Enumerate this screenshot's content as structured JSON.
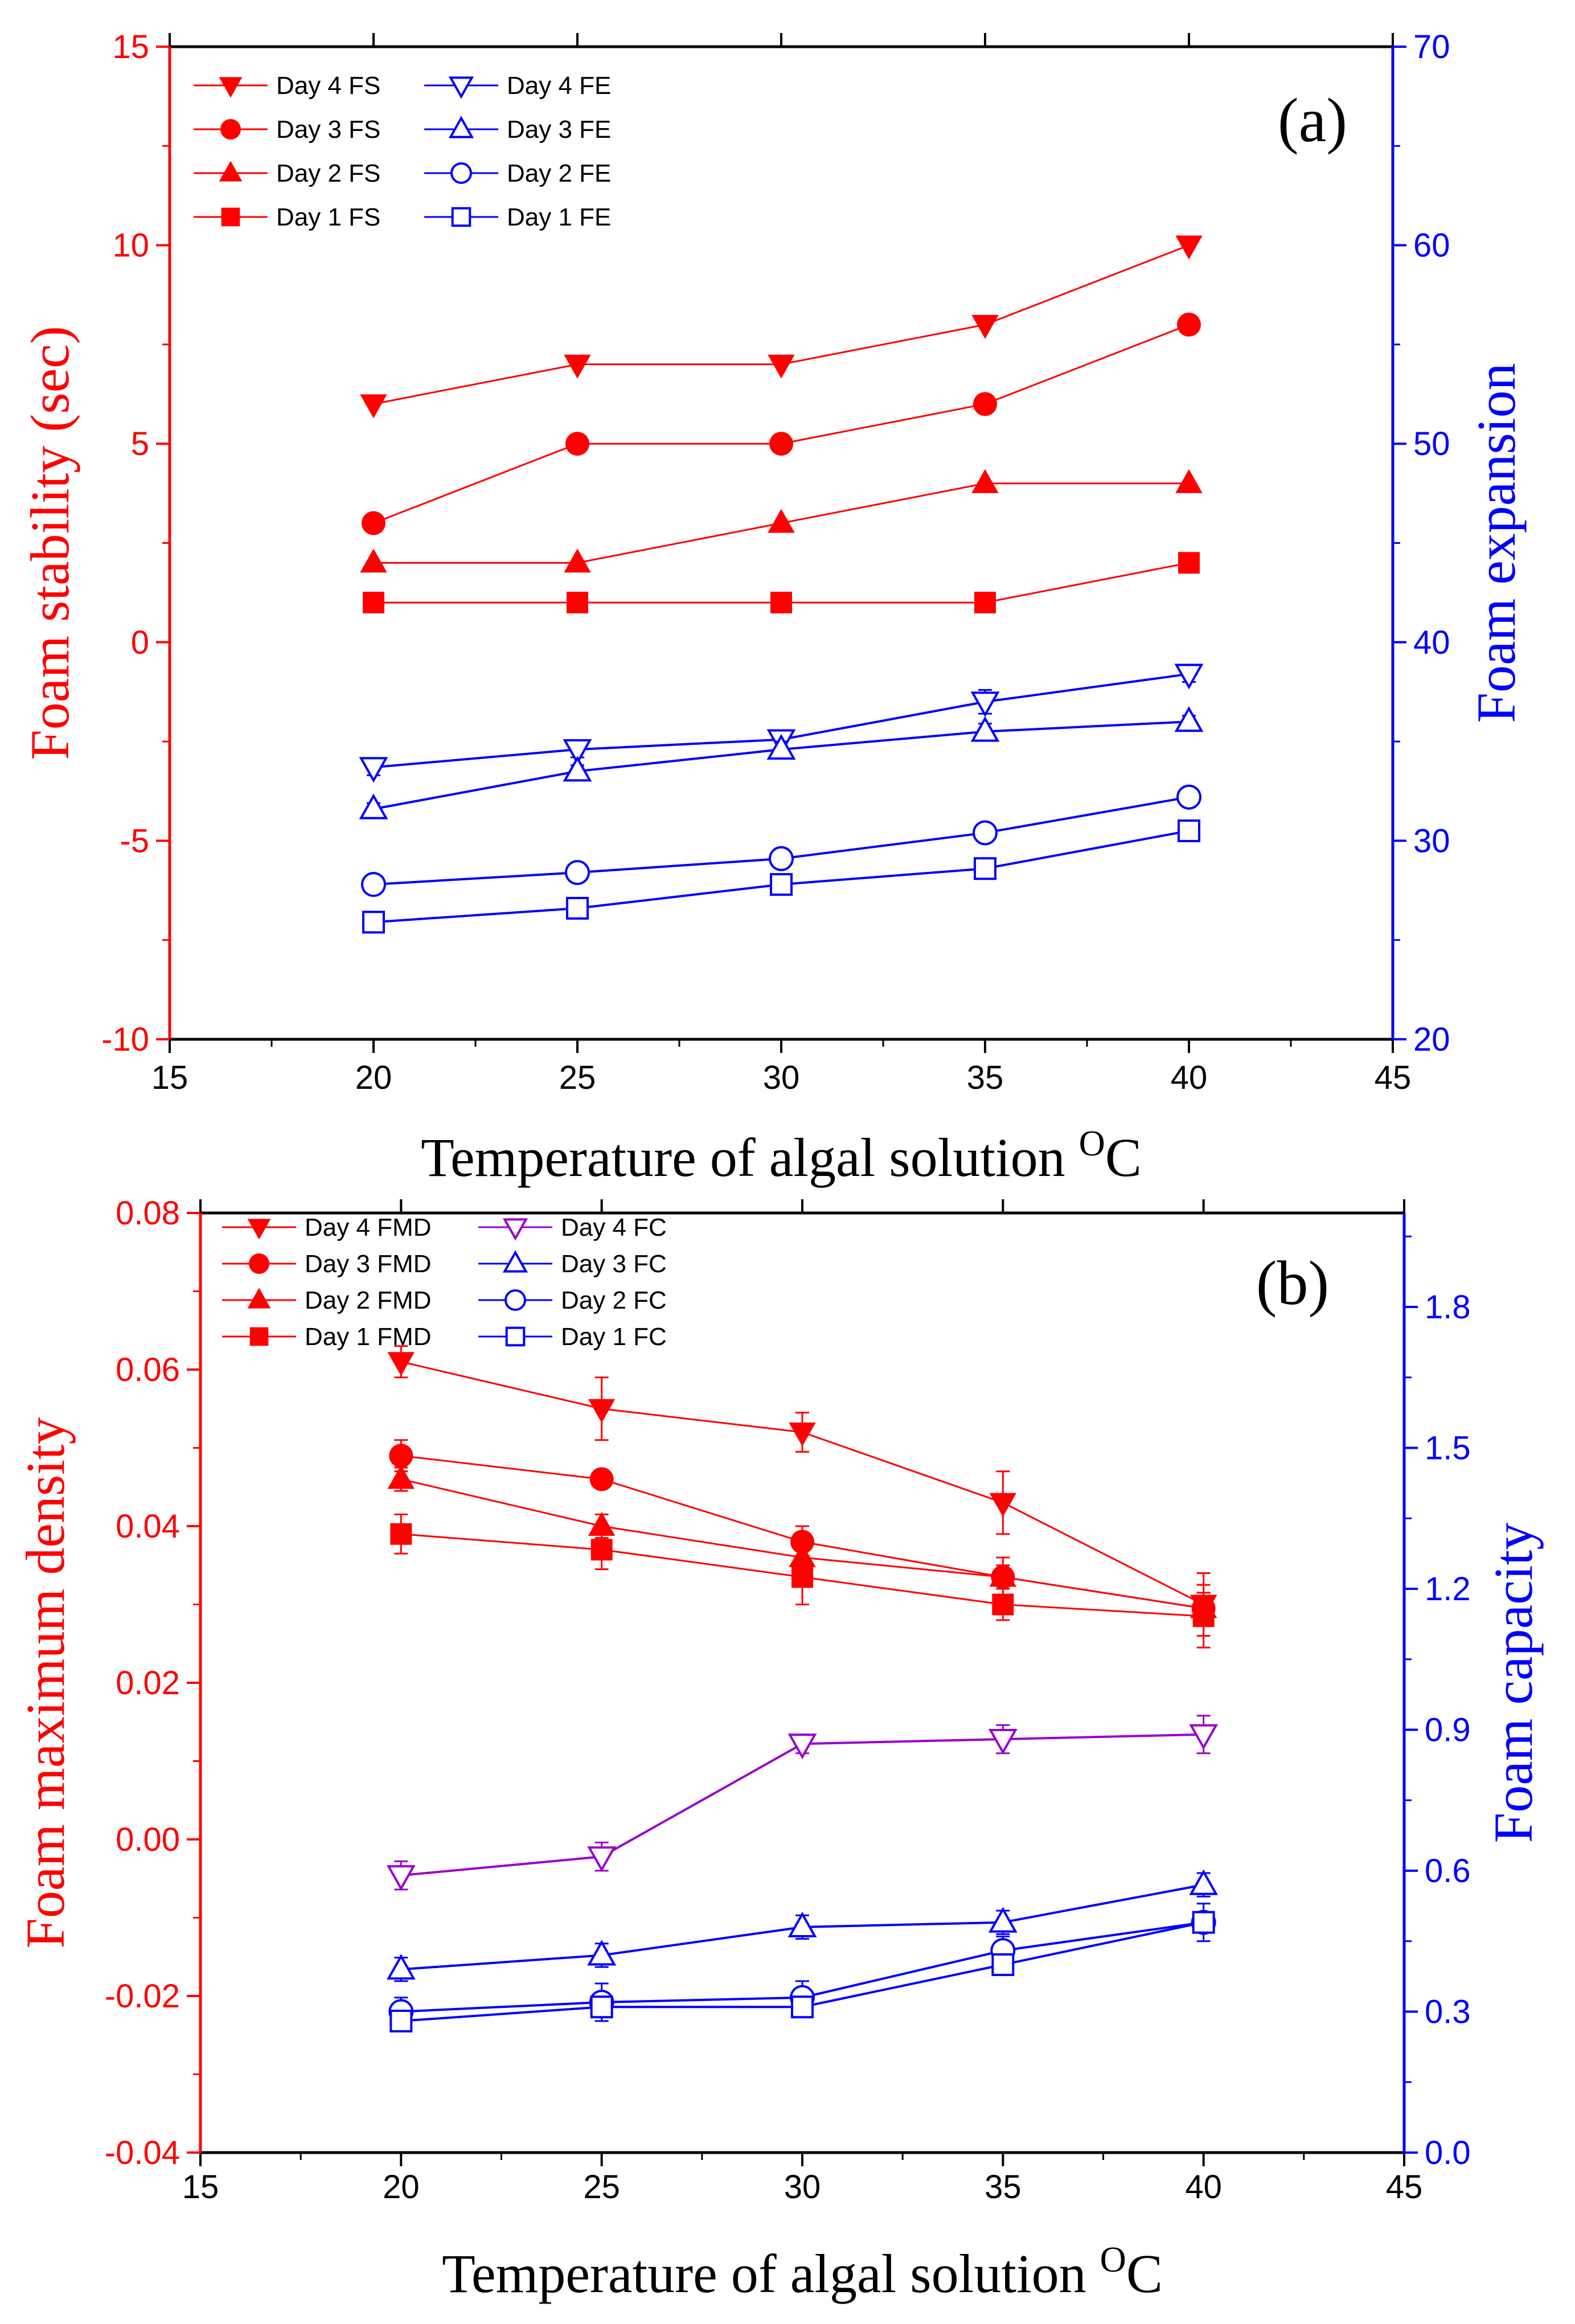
{
  "colors": {
    "red": "#ff0000",
    "blue": "#0000ff",
    "purple": "#9900cc",
    "black": "#000000"
  },
  "chart_data": [
    {
      "panel_label": "(a)",
      "type": "line",
      "xlabel": "Temperature of algal solution",
      "xlabel_unit_sup": "O",
      "xlabel_unit": "C",
      "xlim": [
        15,
        45
      ],
      "xticks": [
        "15",
        "20",
        "25",
        "30",
        "35",
        "40",
        "45"
      ],
      "ylabel_left": "Foam stability (sec)",
      "ylim_left": [
        -10,
        15
      ],
      "yticks_left": [
        "-10",
        "-5",
        "0",
        "5",
        "10",
        "15"
      ],
      "ylabel_right": "Foam expansion",
      "ylim_right": [
        20,
        70
      ],
      "yticks_right": [
        "20",
        "30",
        "40",
        "50",
        "60",
        "70"
      ],
      "legend_position": "top-left",
      "x": [
        20,
        25,
        30,
        35,
        40
      ],
      "series": [
        {
          "name": "Day 4 FS",
          "axis": "left",
          "marker": "tri-down-filled",
          "color": "#ff0000",
          "values": [
            6,
            7,
            7,
            8,
            10
          ]
        },
        {
          "name": "Day 3 FS",
          "axis": "left",
          "marker": "circle-filled",
          "color": "#ff0000",
          "values": [
            3,
            5,
            5,
            6,
            8
          ]
        },
        {
          "name": "Day 2 FS",
          "axis": "left",
          "marker": "tri-up-filled",
          "color": "#ff0000",
          "values": [
            2,
            2,
            3,
            4,
            4
          ]
        },
        {
          "name": "Day 1 FS",
          "axis": "left",
          "marker": "square-filled",
          "color": "#ff0000",
          "values": [
            1,
            1,
            1,
            1,
            2
          ]
        },
        {
          "name": "Day 4 FE",
          "axis": "right",
          "marker": "tri-down-open",
          "color": "#0000ff",
          "values": [
            33.7,
            34.6,
            35.1,
            37.0,
            38.4
          ],
          "error": [
            0.4,
            0.4,
            0.4,
            0.6,
            0.4
          ]
        },
        {
          "name": "Day 3 FE",
          "axis": "right",
          "marker": "tri-up-open",
          "color": "#0000ff",
          "values": [
            31.6,
            33.5,
            34.6,
            35.5,
            36.0
          ],
          "error": [
            0.3,
            0.3,
            0.4,
            0.4,
            0.3
          ]
        },
        {
          "name": "Day 2 FE",
          "axis": "right",
          "marker": "circle-open",
          "color": "#0000ff",
          "values": [
            27.8,
            28.4,
            29.1,
            30.4,
            32.2
          ],
          "error": [
            0.3,
            0.3,
            0.3,
            0.3,
            0.3
          ]
        },
        {
          "name": "Day 1 FE",
          "axis": "right",
          "marker": "square-open",
          "color": "#0000ff",
          "values": [
            25.9,
            26.6,
            27.8,
            28.6,
            30.5
          ],
          "error": [
            0.3,
            0.3,
            0.3,
            0.3,
            0.3
          ]
        }
      ]
    },
    {
      "panel_label": "(b)",
      "type": "line",
      "xlabel": "Temperature of algal solution",
      "xlabel_unit_sup": "O",
      "xlabel_unit": "C",
      "xlim": [
        15,
        45
      ],
      "xticks": [
        "15",
        "20",
        "25",
        "30",
        "35",
        "40",
        "45"
      ],
      "ylabel_left": "Foam maximum density",
      "ylim_left": [
        -0.04,
        0.08
      ],
      "yticks_left": [
        "-0.04",
        "-0.02",
        "0.00",
        "0.02",
        "0.04",
        "0.06",
        "0.08"
      ],
      "ylabel_right": "Foam capacity",
      "ylim_right": [
        0.0,
        2.0
      ],
      "yticks_right": [
        "0.0",
        "0.3",
        "0.6",
        "0.9",
        "1.2",
        "1.5",
        "1.8"
      ],
      "legend_position": "top-left",
      "x": [
        20,
        25,
        30,
        35,
        40
      ],
      "series": [
        {
          "name": "Day 4 FMD",
          "axis": "left",
          "marker": "tri-down-filled",
          "color": "#ff0000",
          "values": [
            0.061,
            0.055,
            0.052,
            0.043,
            0.03
          ],
          "error": [
            0.002,
            0.004,
            0.0025,
            0.004,
            0.004
          ]
        },
        {
          "name": "Day 3 FMD",
          "axis": "left",
          "marker": "circle-filled",
          "color": "#ff0000",
          "values": [
            0.049,
            0.046,
            0.038,
            0.0335,
            0.0295
          ],
          "error": [
            0.002,
            0.001,
            0.002,
            0.0025,
            0.002
          ]
        },
        {
          "name": "Day 2 FMD",
          "axis": "left",
          "marker": "tri-up-filled",
          "color": "#ff0000",
          "values": [
            0.046,
            0.04,
            0.036,
            0.0335,
            0.0295
          ],
          "error": [
            0.0015,
            0.0015,
            0.0015,
            0.0015,
            0.0015
          ]
        },
        {
          "name": "Day 1 FMD",
          "axis": "left",
          "marker": "square-filled",
          "color": "#ff0000",
          "values": [
            0.039,
            0.037,
            0.0335,
            0.03,
            0.0285
          ],
          "error": [
            0.0025,
            0.0025,
            0.0035,
            0.002,
            0.004
          ]
        },
        {
          "name": "Day 4 FC",
          "axis": "right",
          "marker": "tri-down-open",
          "color": "#9900cc",
          "values": [
            0.59,
            0.63,
            0.87,
            0.88,
            0.89
          ],
          "error": [
            0.03,
            0.03,
            0.02,
            0.03,
            0.04
          ]
        },
        {
          "name": "Day 3 FC",
          "axis": "right",
          "marker": "tri-up-open",
          "color": "#0000ff",
          "values": [
            0.39,
            0.42,
            0.48,
            0.49,
            0.57
          ],
          "error": [
            0.025,
            0.025,
            0.025,
            0.025,
            0.025
          ]
        },
        {
          "name": "Day 2 FC",
          "axis": "right",
          "marker": "circle-open",
          "color": "#0000ff",
          "values": [
            0.3,
            0.32,
            0.33,
            0.43,
            0.49
          ],
          "error": [
            0.03,
            0.04,
            0.035,
            0.03,
            0.04
          ]
        },
        {
          "name": "Day 1 FC",
          "axis": "right",
          "marker": "square-open",
          "color": "#0000ff",
          "values": [
            0.28,
            0.31,
            0.31,
            0.4,
            0.49
          ],
          "error": [
            0.02,
            0.02,
            0.02,
            0.02,
            0.02
          ]
        }
      ]
    }
  ]
}
